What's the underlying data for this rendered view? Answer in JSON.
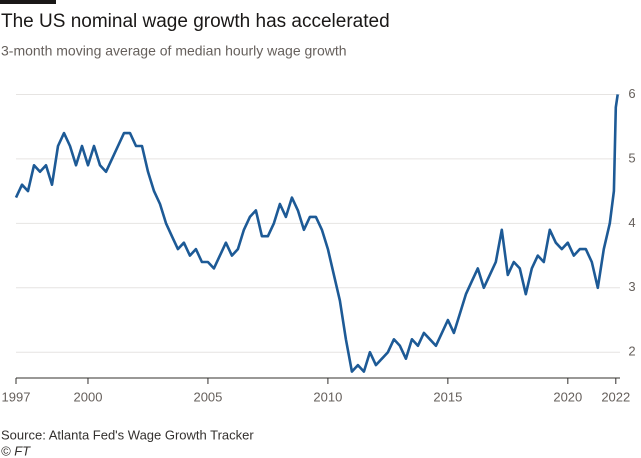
{
  "chart_data": {
    "type": "line",
    "title": "The US nominal wage growth has accelerated",
    "subtitle": "3-month moving average of median hourly wage growth",
    "source": "Source: Atlanta Fed's Wage Growth Tracker",
    "credit": "© FT",
    "color": "#1d5a96",
    "x": [
      1997.0,
      1997.25,
      1997.5,
      1997.75,
      1998.0,
      1998.25,
      1998.5,
      1998.75,
      1999.0,
      1999.25,
      1999.5,
      1999.75,
      2000.0,
      2000.25,
      2000.5,
      2000.75,
      2001.0,
      2001.25,
      2001.5,
      2001.75,
      2002.0,
      2002.25,
      2002.5,
      2002.75,
      2003.0,
      2003.25,
      2003.5,
      2003.75,
      2004.0,
      2004.25,
      2004.5,
      2004.75,
      2005.0,
      2005.25,
      2005.5,
      2005.75,
      2006.0,
      2006.25,
      2006.5,
      2006.75,
      2007.0,
      2007.25,
      2007.5,
      2007.75,
      2008.0,
      2008.25,
      2008.5,
      2008.75,
      2009.0,
      2009.25,
      2009.5,
      2009.75,
      2010.0,
      2010.25,
      2010.5,
      2010.75,
      2011.0,
      2011.25,
      2011.5,
      2011.75,
      2012.0,
      2012.25,
      2012.5,
      2012.75,
      2013.0,
      2013.25,
      2013.5,
      2013.75,
      2014.0,
      2014.25,
      2014.5,
      2014.75,
      2015.0,
      2015.25,
      2015.5,
      2015.75,
      2016.0,
      2016.25,
      2016.5,
      2016.75,
      2017.0,
      2017.25,
      2017.5,
      2017.75,
      2018.0,
      2018.25,
      2018.5,
      2018.75,
      2019.0,
      2019.25,
      2019.5,
      2019.75,
      2020.0,
      2020.25,
      2020.5,
      2020.75,
      2021.0,
      2021.25,
      2021.5,
      2021.75,
      2021.92,
      2022.0,
      2022.08
    ],
    "values": [
      4.4,
      4.6,
      4.5,
      4.9,
      4.8,
      4.9,
      4.6,
      5.2,
      5.4,
      5.2,
      4.9,
      5.2,
      4.9,
      5.2,
      4.9,
      4.8,
      5.0,
      5.2,
      5.4,
      5.4,
      5.2,
      5.2,
      4.8,
      4.5,
      4.3,
      4.0,
      3.8,
      3.6,
      3.7,
      3.5,
      3.6,
      3.4,
      3.4,
      3.3,
      3.5,
      3.7,
      3.5,
      3.6,
      3.9,
      4.1,
      4.2,
      3.8,
      3.8,
      4.0,
      4.3,
      4.1,
      4.4,
      4.2,
      3.9,
      4.1,
      4.1,
      3.9,
      3.6,
      3.2,
      2.8,
      2.2,
      1.7,
      1.8,
      1.7,
      2.0,
      1.8,
      1.9,
      2.0,
      2.2,
      2.1,
      1.9,
      2.2,
      2.1,
      2.3,
      2.2,
      2.1,
      2.3,
      2.5,
      2.3,
      2.6,
      2.9,
      3.1,
      3.3,
      3.0,
      3.2,
      3.4,
      3.9,
      3.2,
      3.4,
      3.3,
      2.9,
      3.3,
      3.5,
      3.4,
      3.9,
      3.7,
      3.6,
      3.7,
      3.5,
      3.6,
      3.6,
      3.4,
      3.0,
      3.6,
      4.0,
      4.5,
      5.8,
      6.0
    ],
    "xlim": [
      1997,
      2022.3
    ],
    "xticks": [
      1997,
      2000,
      2005,
      2010,
      2015,
      2020,
      2022
    ],
    "ylim": [
      1.6,
      6.1
    ],
    "yticks": [
      2,
      3,
      4,
      5,
      6
    ],
    "grid": true
  }
}
